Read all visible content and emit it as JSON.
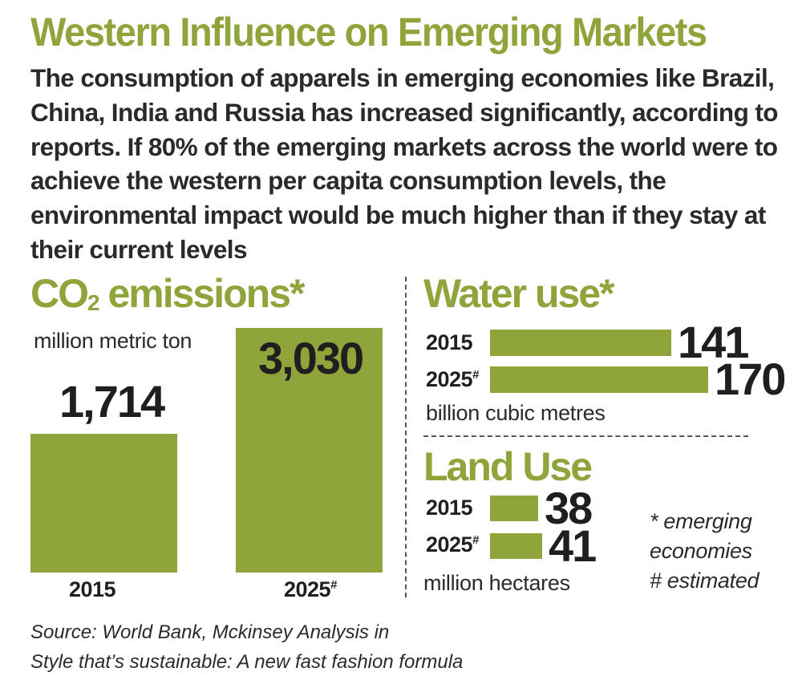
{
  "title": "Western Influence on Emerging Markets",
  "intro": "The consumption of apparels in emerging economies like Brazil, China, India and Russia has increased significantly, according to reports. If 80% of the emerging markets across the world were to achieve the western per capita consumption levels, the environmental impact would be much higher than if they stay at their current levels",
  "colors": {
    "accent": "#8fa43a",
    "text": "#1f1f1f"
  },
  "chart_data": [
    {
      "type": "bar",
      "title_main": "CO",
      "title_sub": "2",
      "title_rest": " emissions*",
      "unit": "million metric ton",
      "categories": [
        "2015",
        "2025"
      ],
      "category_marks": [
        "",
        "#"
      ],
      "values": [
        1714,
        3030
      ],
      "value_labels": [
        "1,714",
        "3,030"
      ]
    },
    {
      "type": "bar",
      "orientation": "horizontal",
      "title": "Water use*",
      "unit": "billion cubic metres",
      "categories": [
        "2015",
        "2025"
      ],
      "category_marks": [
        "",
        "#"
      ],
      "values": [
        141,
        170
      ],
      "value_labels": [
        "141",
        "170"
      ]
    },
    {
      "type": "bar",
      "orientation": "horizontal",
      "title": "Land Use",
      "unit": "million hectares",
      "categories": [
        "2015",
        "2025"
      ],
      "category_marks": [
        "",
        "#"
      ],
      "values": [
        38,
        41
      ],
      "value_labels": [
        "38",
        "41"
      ]
    }
  ],
  "notes": [
    "* emerging",
    "economies",
    "# estimated"
  ],
  "source": [
    "Source: World Bank, Mckinsey Analysis in",
    "Style that’s sustainable: A new fast fashion formula"
  ]
}
